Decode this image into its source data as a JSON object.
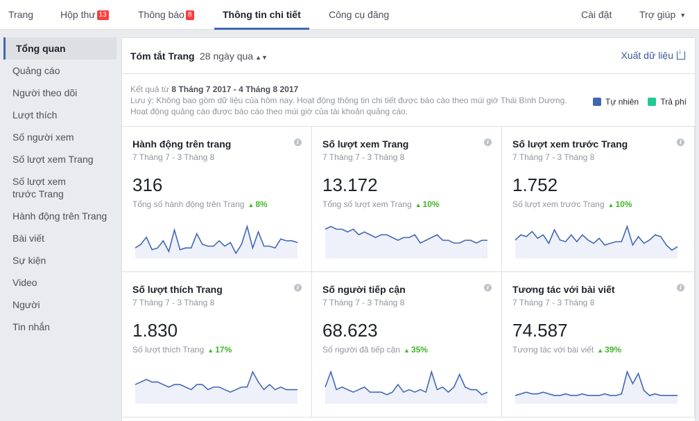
{
  "nav": {
    "items": [
      {
        "label": "Trang",
        "badge": ""
      },
      {
        "label": "Hộp thư",
        "badge": "13"
      },
      {
        "label": "Thông báo",
        "badge": "8"
      },
      {
        "label": "Thông tin chi tiết",
        "badge": ""
      },
      {
        "label": "Công cụ đăng",
        "badge": ""
      }
    ],
    "settings": "Cài đặt",
    "help": "Trợ giúp"
  },
  "sidebar": {
    "items": [
      {
        "label": "Tổng quan"
      },
      {
        "label": "Quảng cáo"
      },
      {
        "label": "Người theo dõi"
      },
      {
        "label": "Lượt thích"
      },
      {
        "label": "Số người xem"
      },
      {
        "label": "Số lượt xem Trang"
      },
      {
        "label": "Số lượt xem trước Trang"
      },
      {
        "label": "Hành động trên Trang"
      },
      {
        "label": "Bài viết"
      },
      {
        "label": "Sự kiện"
      },
      {
        "label": "Video"
      },
      {
        "label": "Người"
      },
      {
        "label": "Tin nhắn"
      }
    ]
  },
  "summary": {
    "title": "Tóm tắt Trang",
    "range": "28 ngày qua",
    "export": "Xuất dữ liệu",
    "result_prefix": "Kết quả từ",
    "result_range": "8 Tháng 7 2017 - 4 Tháng 8 2017",
    "note_line1": "Lưu ý: Không bao gồm dữ liệu của hôm nay. Hoạt động thông tin chi tiết được báo cáo theo múi giờ Thái Bình Dương.",
    "note_line2": "Hoạt động quảng cáo được báo cáo theo múi giờ của tài khoản quảng cáo.",
    "legend": [
      {
        "label": "Tự nhiên",
        "color": "#4267b2"
      },
      {
        "label": "Trả phí",
        "color": "#20c997"
      }
    ]
  },
  "colors": {
    "line": "#4267b2",
    "fill": "#eef0fa",
    "accent": "#4267b2",
    "positive": "#42b72a"
  },
  "cards": [
    {
      "title": "Hành động trên trang",
      "range": "7 Tháng 7 - 3 Tháng 8",
      "value": "316",
      "sub": "Tổng số hành động trên Trang",
      "pct": "8%",
      "series": [
        5,
        7,
        11,
        4,
        5,
        9,
        3,
        15,
        4,
        5,
        5,
        13,
        7,
        6,
        6,
        9,
        6,
        8,
        2,
        7,
        17,
        5,
        14,
        6,
        6,
        5,
        10,
        9,
        9,
        8
      ]
    },
    {
      "title": "Số lượt xem Trang",
      "range": "7 Tháng 7 - 3 Tháng 8",
      "value": "13.172",
      "sub": "Tổng số lượt xem Trang",
      "pct": "10%",
      "series": [
        10,
        11,
        10,
        10,
        9,
        10,
        8,
        9,
        8,
        7,
        8,
        8,
        7,
        6,
        7,
        7,
        8,
        5,
        6,
        7,
        8,
        6,
        6,
        5,
        5,
        6,
        6,
        5,
        6,
        6
      ]
    },
    {
      "title": "Số lượt xem trước Trang",
      "range": "7 Tháng 7 - 3 Tháng 8",
      "value": "1.752",
      "sub": "Số lượt xem trước Trang",
      "pct": "10%",
      "series": [
        10,
        13,
        12,
        15,
        11,
        13,
        8,
        16,
        10,
        9,
        13,
        9,
        13,
        10,
        8,
        11,
        7,
        8,
        9,
        9,
        18,
        7,
        12,
        8,
        10,
        13,
        12,
        7,
        4,
        6
      ]
    },
    {
      "title": "Số lượt thích Trang",
      "range": "7 Tháng 7 - 3 Tháng 8",
      "value": "1.830",
      "sub": "Số lượt thích Trang",
      "pct": "17%",
      "series": [
        7,
        8,
        9,
        8,
        8,
        7,
        6,
        7,
        7,
        6,
        5,
        7,
        7,
        5,
        6,
        6,
        5,
        4,
        5,
        6,
        6,
        12,
        8,
        5,
        7,
        5,
        6,
        5,
        5,
        5
      ]
    },
    {
      "title": "Số người tiếp cận",
      "range": "7 Tháng 7 - 3 Tháng 8",
      "value": "68.623",
      "sub": "Số người đã tiếp cận",
      "pct": "35%",
      "series": [
        6,
        12,
        5,
        6,
        5,
        4,
        5,
        6,
        4,
        4,
        4,
        3,
        4,
        7,
        4,
        5,
        4,
        5,
        4,
        12,
        5,
        6,
        4,
        6,
        11,
        6,
        5,
        5,
        3,
        4
      ]
    },
    {
      "title": "Tương tác với bài viết",
      "range": "7 Tháng 7 - 3 Tháng 8",
      "value": "74.587",
      "sub": "Tương tác với bài viết",
      "pct": "39%",
      "series": [
        4,
        5,
        6,
        5,
        5,
        6,
        5,
        4,
        4,
        5,
        4,
        4,
        5,
        4,
        4,
        4,
        5,
        4,
        4,
        5,
        18,
        11,
        17,
        7,
        4,
        5,
        4,
        4,
        4,
        4
      ]
    }
  ]
}
